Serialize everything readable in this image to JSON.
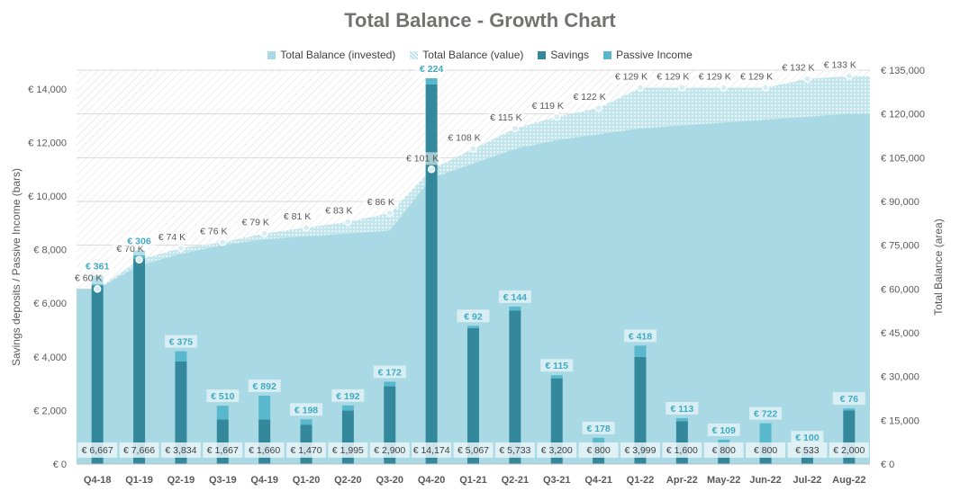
{
  "chart_data": {
    "type": "bar",
    "title": "Total Balance - Growth Chart",
    "ylabel_left": "Savings deposits / Passive Income (bars)",
    "ylabel_right": "Total Balance (area)",
    "categories": [
      "Q4-18",
      "Q1-19",
      "Q2-19",
      "Q3-19",
      "Q4-19",
      "Q1-20",
      "Q2-20",
      "Q3-20",
      "Q4-20",
      "Q1-21",
      "Q2-21",
      "Q3-21",
      "Q4-21",
      "Q1-22",
      "Apr-22",
      "May-22",
      "Jun-22",
      "Jul-22",
      "Aug-22"
    ],
    "left_axis": {
      "min": 0,
      "max": 14700,
      "ticks": [
        0,
        2000,
        4000,
        6000,
        8000,
        10000,
        12000,
        14000
      ],
      "tick_labels": [
        "€ 0",
        "€ 2,000",
        "€ 4,000",
        "€ 6,000",
        "€ 8,000",
        "€ 10,000",
        "€ 12,000",
        "€ 14,000"
      ]
    },
    "right_axis": {
      "min": 0,
      "max": 135000,
      "ticks": [
        0,
        15000,
        30000,
        45000,
        60000,
        75000,
        90000,
        105000,
        120000,
        135000
      ],
      "tick_labels": [
        "€ 0",
        "€ 15,000",
        "€ 30,000",
        "€ 45,000",
        "€ 60,000",
        "€ 75,000",
        "€ 90,000",
        "€ 105,000",
        "€ 120,000",
        "€ 135,000"
      ]
    },
    "series": [
      {
        "name": "Total Balance (invested)",
        "kind": "area",
        "axis": "right",
        "values": [
          60000,
          68000,
          72000,
          75000,
          77000,
          78000,
          79000,
          80000,
          98000,
          103000,
          108000,
          111000,
          113000,
          115000,
          116000,
          117000,
          118000,
          119000,
          120000
        ]
      },
      {
        "name": "Total Balance (value)",
        "kind": "area-pattern",
        "axis": "right",
        "values": [
          60000,
          70000,
          74000,
          76000,
          79000,
          81000,
          83000,
          86000,
          101000,
          108000,
          115000,
          119000,
          122000,
          129000,
          129000,
          129000,
          129000,
          132000,
          133000
        ],
        "labels": [
          "€ 60 K",
          "€ 70 K",
          "€ 74 K",
          "€ 76 K",
          "€ 79 K",
          "€ 81 K",
          "€ 83 K",
          "€ 86 K",
          "€ 101 K",
          "€ 108 K",
          "€ 115 K",
          "€ 119 K",
          "€ 122 K",
          "€ 129 K",
          "€ 129 K",
          "€ 129 K",
          "€ 129 K",
          "€ 132 K",
          "€ 133 K"
        ]
      },
      {
        "name": "Savings",
        "kind": "bar",
        "axis": "left",
        "values": [
          6667,
          7666,
          3834,
          1667,
          1660,
          1470,
          1995,
          2900,
          14174,
          5067,
          5733,
          3200,
          800,
          3999,
          1600,
          800,
          800,
          533,
          2000
        ],
        "labels": [
          "€ 6,667",
          "€ 7,666",
          "€ 3,834",
          "€ 1,667",
          "€ 1,660",
          "€ 1,470",
          "€ 1,995",
          "€ 2,900",
          "€ 14,174",
          "€ 5,067",
          "€ 5,733",
          "€ 3,200",
          "€ 800",
          "€ 3,999",
          "€ 1,600",
          "€ 800",
          "€ 800",
          "€ 533",
          "€ 2,000"
        ]
      },
      {
        "name": "Passive Income",
        "kind": "bar-stacked",
        "axis": "left",
        "values": [
          361,
          306,
          375,
          510,
          892,
          198,
          192,
          172,
          224,
          92,
          144,
          115,
          178,
          418,
          113,
          109,
          722,
          100,
          76
        ],
        "labels": [
          "€ 361",
          "€ 306",
          "€ 375",
          "€ 510",
          "€ 892",
          "€ 198",
          "€ 192",
          "€ 172",
          "€ 224",
          "€ 92",
          "€ 144",
          "€ 115",
          "€ 178",
          "€ 418",
          "€ 113",
          "€ 109",
          "€ 722",
          "€ 100",
          "€ 76"
        ]
      }
    ],
    "colors": {
      "invested": "#a8d9e4",
      "value_pattern": "#d2eaf0",
      "savings": "#33889c",
      "passive": "#5ab8cc",
      "passive_label": "#41aac3",
      "grid": "#d9d9d9"
    },
    "grid": true,
    "legend_position": "top"
  }
}
